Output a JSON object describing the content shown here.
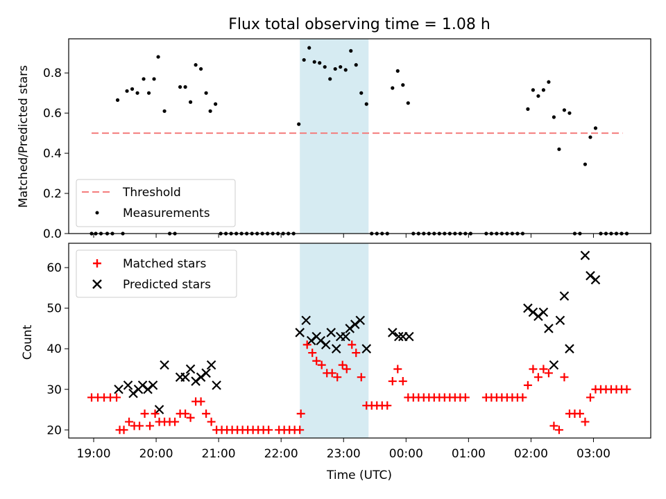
{
  "chart_data": [
    {
      "type": "scatter",
      "title": "Flux total observing time = 1.08 h",
      "ylabel": "Matched/Predicted stars",
      "xlabel": "",
      "xlim": [
        "18:36",
        "03:55"
      ],
      "ylim": [
        0,
        0.97
      ],
      "yticks": [
        "0.0",
        "0.2",
        "0.4",
        "0.6",
        "0.8"
      ],
      "highlight_span": [
        "22:18",
        "23:24"
      ],
      "legend": {
        "position": "lower left",
        "entries": [
          "Threshold",
          "Measurements"
        ]
      },
      "threshold": {
        "name": "Threshold",
        "y": 0.5,
        "x": [
          "18:58",
          "03:28"
        ],
        "color": "#f47c7c"
      },
      "series": [
        {
          "name": "Measurements",
          "color": "#000000",
          "points": [
            [
              "18:58",
              0
            ],
            [
              "19:02",
              0
            ],
            [
              "19:07",
              0
            ],
            [
              "19:13",
              0
            ],
            [
              "19:18",
              0
            ],
            [
              "19:23",
              0.665
            ],
            [
              "19:28",
              0
            ],
            [
              "19:32",
              0.71
            ],
            [
              "19:37",
              0.72
            ],
            [
              "19:42",
              0.7
            ],
            [
              "19:48",
              0.77
            ],
            [
              "19:53",
              0.7
            ],
            [
              "19:58",
              0.77
            ],
            [
              "20:02",
              0.88
            ],
            [
              "20:08",
              0.61
            ],
            [
              "20:13",
              0
            ],
            [
              "20:18",
              0
            ],
            [
              "20:23",
              0.73
            ],
            [
              "20:28",
              0.73
            ],
            [
              "20:33",
              0.655
            ],
            [
              "20:38",
              0.84
            ],
            [
              "20:43",
              0.82
            ],
            [
              "20:48",
              0.7
            ],
            [
              "20:52",
              0.61
            ],
            [
              "20:57",
              0.645
            ],
            [
              "21:02",
              0
            ],
            [
              "21:07",
              0
            ],
            [
              "21:12",
              0
            ],
            [
              "21:17",
              0
            ],
            [
              "21:22",
              0
            ],
            [
              "21:27",
              0
            ],
            [
              "21:32",
              0
            ],
            [
              "21:37",
              0
            ],
            [
              "21:42",
              0
            ],
            [
              "21:47",
              0
            ],
            [
              "21:52",
              0
            ],
            [
              "21:57",
              0
            ],
            [
              "22:02",
              0
            ],
            [
              "22:07",
              0
            ],
            [
              "22:12",
              0
            ],
            [
              "22:17",
              0.545
            ],
            [
              "22:22",
              0.865
            ],
            [
              "22:27",
              0.925
            ],
            [
              "22:32",
              0.855
            ],
            [
              "22:37",
              0.85
            ],
            [
              "22:42",
              0.83
            ],
            [
              "22:47",
              0.77
            ],
            [
              "22:52",
              0.82
            ],
            [
              "22:57",
              0.83
            ],
            [
              "23:02",
              0.815
            ],
            [
              "23:07",
              0.91
            ],
            [
              "23:12",
              0.84
            ],
            [
              "23:17",
              0.7
            ],
            [
              "23:22",
              0.645
            ],
            [
              "23:27",
              0
            ],
            [
              "23:32",
              0
            ],
            [
              "23:37",
              0
            ],
            [
              "23:42",
              0
            ],
            [
              "23:47",
              0.725
            ],
            [
              "23:52",
              0.81
            ],
            [
              "23:57",
              0.74
            ],
            [
              "00:02",
              0.65
            ],
            [
              "00:07",
              0
            ],
            [
              "00:12",
              0
            ],
            [
              "00:17",
              0
            ],
            [
              "00:22",
              0
            ],
            [
              "00:27",
              0
            ],
            [
              "00:32",
              0
            ],
            [
              "00:37",
              0
            ],
            [
              "00:42",
              0
            ],
            [
              "00:47",
              0
            ],
            [
              "00:52",
              0
            ],
            [
              "00:57",
              0
            ],
            [
              "01:02",
              0
            ],
            [
              "01:17",
              0
            ],
            [
              "01:22",
              0
            ],
            [
              "01:27",
              0
            ],
            [
              "01:32",
              0
            ],
            [
              "01:37",
              0
            ],
            [
              "01:42",
              0
            ],
            [
              "01:47",
              0
            ],
            [
              "01:52",
              0
            ],
            [
              "01:57",
              0.62
            ],
            [
              "02:02",
              0.715
            ],
            [
              "02:07",
              0.685
            ],
            [
              "02:12",
              0.715
            ],
            [
              "02:17",
              0.755
            ],
            [
              "02:22",
              0.58
            ],
            [
              "02:27",
              0.42
            ],
            [
              "02:32",
              0.615
            ],
            [
              "02:37",
              0.6
            ],
            [
              "02:42",
              0
            ],
            [
              "02:47",
              0
            ],
            [
              "02:52",
              0.345
            ],
            [
              "02:57",
              0.48
            ],
            [
              "03:02",
              0.525
            ],
            [
              "03:07",
              0
            ],
            [
              "03:12",
              0
            ],
            [
              "03:17",
              0
            ],
            [
              "03:22",
              0
            ],
            [
              "03:27",
              0
            ],
            [
              "03:32",
              0
            ]
          ]
        }
      ]
    },
    {
      "type": "scatter",
      "title": "",
      "xlabel": "Time (UTC)",
      "ylabel": "Count",
      "xlim": [
        "18:36",
        "03:55"
      ],
      "ylim": [
        18,
        66
      ],
      "xticks": [
        "19:00",
        "20:00",
        "21:00",
        "22:00",
        "23:00",
        "00:00",
        "01:00",
        "02:00",
        "03:00"
      ],
      "yticks": [
        "20",
        "30",
        "40",
        "50",
        "60"
      ],
      "highlight_span": [
        "22:18",
        "23:24"
      ],
      "legend": {
        "position": "upper left",
        "entries": [
          "Matched stars",
          "Predicted stars"
        ]
      },
      "series": [
        {
          "name": "Matched stars",
          "marker": "+",
          "color": "#ff0000",
          "points": [
            [
              "18:58",
              28
            ],
            [
              "19:04",
              28
            ],
            [
              "19:10",
              28
            ],
            [
              "19:16",
              28
            ],
            [
              "19:22",
              28
            ],
            [
              "19:25",
              20
            ],
            [
              "19:29",
              20
            ],
            [
              "19:34",
              22
            ],
            [
              "19:39",
              21
            ],
            [
              "19:44",
              21
            ],
            [
              "19:49",
              24
            ],
            [
              "19:54",
              21
            ],
            [
              "19:59",
              24
            ],
            [
              "20:03",
              22
            ],
            [
              "20:08",
              22
            ],
            [
              "20:13",
              22
            ],
            [
              "20:18",
              22
            ],
            [
              "20:23",
              24
            ],
            [
              "20:28",
              24
            ],
            [
              "20:33",
              23
            ],
            [
              "20:38",
              27
            ],
            [
              "20:43",
              27
            ],
            [
              "20:48",
              24
            ],
            [
              "20:53",
              22
            ],
            [
              "20:58",
              20
            ],
            [
              "21:03",
              20
            ],
            [
              "21:08",
              20
            ],
            [
              "21:13",
              20
            ],
            [
              "21:18",
              20
            ],
            [
              "21:23",
              20
            ],
            [
              "21:28",
              20
            ],
            [
              "21:33",
              20
            ],
            [
              "21:38",
              20
            ],
            [
              "21:43",
              20
            ],
            [
              "21:48",
              20
            ],
            [
              "21:58",
              20
            ],
            [
              "22:03",
              20
            ],
            [
              "22:08",
              20
            ],
            [
              "22:13",
              20
            ],
            [
              "22:18",
              20
            ],
            [
              "22:19",
              24
            ],
            [
              "22:25",
              41
            ],
            [
              "22:30",
              39
            ],
            [
              "22:34",
              37
            ],
            [
              "22:39",
              36
            ],
            [
              "22:44",
              34
            ],
            [
              "22:49",
              34
            ],
            [
              "22:54",
              33
            ],
            [
              "22:59",
              36
            ],
            [
              "23:03",
              35
            ],
            [
              "23:08",
              41
            ],
            [
              "23:12",
              39
            ],
            [
              "23:17",
              33
            ],
            [
              "23:22",
              26
            ],
            [
              "23:27",
              26
            ],
            [
              "23:32",
              26
            ],
            [
              "23:37",
              26
            ],
            [
              "23:42",
              26
            ],
            [
              "23:47",
              32
            ],
            [
              "23:52",
              35
            ],
            [
              "23:57",
              32
            ],
            [
              "00:02",
              28
            ],
            [
              "00:07",
              28
            ],
            [
              "00:12",
              28
            ],
            [
              "00:17",
              28
            ],
            [
              "00:22",
              28
            ],
            [
              "00:27",
              28
            ],
            [
              "00:32",
              28
            ],
            [
              "00:37",
              28
            ],
            [
              "00:42",
              28
            ],
            [
              "00:47",
              28
            ],
            [
              "00:52",
              28
            ],
            [
              "00:57",
              28
            ],
            [
              "01:17",
              28
            ],
            [
              "01:22",
              28
            ],
            [
              "01:27",
              28
            ],
            [
              "01:32",
              28
            ],
            [
              "01:37",
              28
            ],
            [
              "01:42",
              28
            ],
            [
              "01:47",
              28
            ],
            [
              "01:52",
              28
            ],
            [
              "01:57",
              31
            ],
            [
              "02:02",
              35
            ],
            [
              "02:07",
              33
            ],
            [
              "02:12",
              35
            ],
            [
              "02:17",
              34
            ],
            [
              "02:22",
              21
            ],
            [
              "02:27",
              20
            ],
            [
              "02:32",
              33
            ],
            [
              "02:37",
              24
            ],
            [
              "02:42",
              24
            ],
            [
              "02:47",
              24
            ],
            [
              "02:52",
              22
            ],
            [
              "02:57",
              28
            ],
            [
              "03:02",
              30
            ],
            [
              "03:07",
              30
            ],
            [
              "03:12",
              30
            ],
            [
              "03:17",
              30
            ],
            [
              "03:22",
              30
            ],
            [
              "03:27",
              30
            ],
            [
              "03:32",
              30
            ]
          ]
        },
        {
          "name": "Predicted stars",
          "marker": "x",
          "color": "#000000",
          "points": [
            [
              "19:24",
              30
            ],
            [
              "19:33",
              31
            ],
            [
              "19:38",
              29
            ],
            [
              "19:43",
              30
            ],
            [
              "19:47",
              31
            ],
            [
              "19:52",
              30
            ],
            [
              "19:57",
              31
            ],
            [
              "20:03",
              25
            ],
            [
              "20:08",
              36
            ],
            [
              "20:23",
              33
            ],
            [
              "20:28",
              33
            ],
            [
              "20:33",
              35
            ],
            [
              "20:38",
              32
            ],
            [
              "20:43",
              33
            ],
            [
              "20:48",
              34
            ],
            [
              "20:53",
              36
            ],
            [
              "20:58",
              31
            ],
            [
              "22:18",
              44
            ],
            [
              "22:24",
              47
            ],
            [
              "22:29",
              42
            ],
            [
              "22:34",
              43
            ],
            [
              "22:38",
              42
            ],
            [
              "22:43",
              41
            ],
            [
              "22:48",
              44
            ],
            [
              "22:53",
              40
            ],
            [
              "22:57",
              43
            ],
            [
              "23:02",
              43
            ],
            [
              "23:06",
              45
            ],
            [
              "23:11",
              46
            ],
            [
              "23:16",
              47
            ],
            [
              "23:22",
              40
            ],
            [
              "23:47",
              44
            ],
            [
              "23:53",
              43
            ],
            [
              "23:57",
              43
            ],
            [
              "00:03",
              43
            ],
            [
              "01:57",
              50
            ],
            [
              "02:02",
              49
            ],
            [
              "02:07",
              48
            ],
            [
              "02:12",
              49
            ],
            [
              "02:17",
              45
            ],
            [
              "02:22",
              36
            ],
            [
              "02:28",
              47
            ],
            [
              "02:32",
              53
            ],
            [
              "02:37",
              40
            ],
            [
              "02:52",
              63
            ],
            [
              "02:57",
              58
            ],
            [
              "03:02",
              57
            ]
          ]
        }
      ]
    }
  ]
}
